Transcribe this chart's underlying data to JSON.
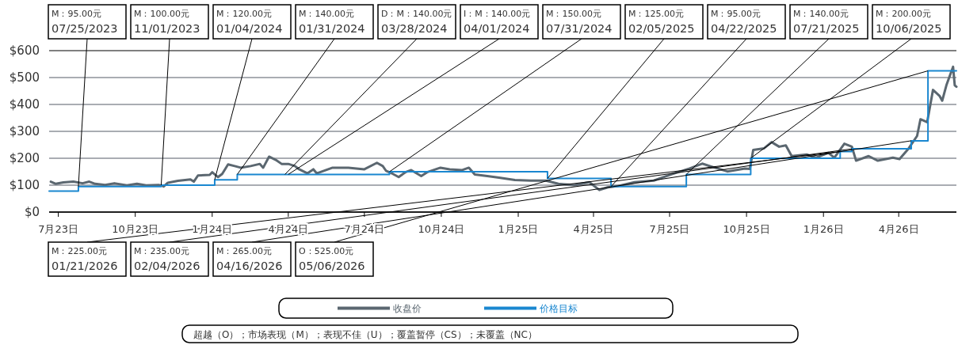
{
  "chart_data": {
    "type": "line",
    "xlim": [
      "2023-06-20",
      "2026-06-09"
    ],
    "xticks": [
      {
        "value": "2023-07-01",
        "label": "7月23日"
      },
      {
        "value": "2023-10-01",
        "label": "10月23日"
      },
      {
        "value": "2024-01-01",
        "label": "1月24日"
      },
      {
        "value": "2024-04-01",
        "label": "4月24日"
      },
      {
        "value": "2024-07-01",
        "label": "7月24日"
      },
      {
        "value": "2024-10-01",
        "label": "10月24日"
      },
      {
        "value": "2025-01-01",
        "label": "1月25日"
      },
      {
        "value": "2025-04-01",
        "label": "4月25日"
      },
      {
        "value": "2025-07-01",
        "label": "7月25日"
      },
      {
        "value": "2025-10-01",
        "label": "10月25日"
      },
      {
        "value": "2026-01-01",
        "label": "1月26日"
      },
      {
        "value": "2026-04-01",
        "label": "4月26日"
      }
    ],
    "ylim": [
      0,
      600
    ],
    "yticks": [
      {
        "value": 0,
        "label": "$0"
      },
      {
        "value": 100,
        "label": "$100"
      },
      {
        "value": 200,
        "label": "$200"
      },
      {
        "value": 300,
        "label": "$300"
      },
      {
        "value": 400,
        "label": "$400"
      },
      {
        "value": 500,
        "label": "$500"
      },
      {
        "value": 600,
        "label": "$600"
      }
    ],
    "grid": "y",
    "legend": "bottom",
    "series": [
      {
        "name": "收盘价",
        "color": "#5b6770",
        "x": [
          "2023-06-22",
          "2023-06-28",
          "2023-07-07",
          "2023-07-19",
          "2023-07-30",
          "2023-08-07",
          "2023-08-14",
          "2023-08-26",
          "2023-09-06",
          "2023-09-21",
          "2023-10-03",
          "2023-10-14",
          "2023-10-29",
          "2023-11-02",
          "2023-11-04",
          "2023-11-09",
          "2023-11-21",
          "2023-12-06",
          "2023-12-10",
          "2023-12-15",
          "2023-12-29",
          "2024-01-01",
          "2024-01-08",
          "2024-01-13",
          "2024-01-20",
          "2024-01-28",
          "2024-02-04",
          "2024-02-16",
          "2024-02-27",
          "2024-03-02",
          "2024-03-09",
          "2024-03-17",
          "2024-03-24",
          "2024-04-01",
          "2024-04-09",
          "2024-04-14",
          "2024-04-24",
          "2024-05-01",
          "2024-05-05",
          "2024-05-24",
          "2024-06-12",
          "2024-07-01",
          "2024-07-16",
          "2024-07-23",
          "2024-07-27",
          "2024-08-04",
          "2024-08-11",
          "2024-08-19",
          "2024-08-26",
          "2024-09-07",
          "2024-09-14",
          "2024-09-30",
          "2024-10-11",
          "2024-10-26",
          "2024-11-03",
          "2024-11-10",
          "2024-11-25",
          "2024-12-09",
          "2024-12-28",
          "2025-01-16",
          "2025-02-03",
          "2025-02-18",
          "2025-03-09",
          "2025-03-27",
          "2025-04-08",
          "2025-04-18",
          "2025-04-29",
          "2025-05-20",
          "2025-06-12",
          "2025-07-03",
          "2025-07-25",
          "2025-08-09",
          "2025-08-21",
          "2025-09-08",
          "2025-09-29",
          "2025-10-05",
          "2025-10-09",
          "2025-10-22",
          "2025-10-31",
          "2025-11-09",
          "2025-11-17",
          "2025-11-24",
          "2025-12-12",
          "2025-12-23",
          "2026-01-07",
          "2026-01-14",
          "2026-01-26",
          "2026-02-04",
          "2026-02-09",
          "2026-02-24",
          "2026-03-07",
          "2026-03-25",
          "2026-04-02",
          "2026-04-13",
          "2026-04-23",
          "2026-04-27",
          "2026-05-05",
          "2026-05-07",
          "2026-05-12",
          "2026-05-20",
          "2026-05-23",
          "2026-05-28",
          "2026-06-03",
          "2026-06-05",
          "2026-06-07",
          "2026-06-09"
        ],
        "values": [
          113,
          105,
          110,
          113,
          107,
          113,
          105,
          101,
          107,
          99,
          105,
          99,
          101,
          98,
          95,
          109,
          116,
          121,
          113,
          136,
          138,
          148,
          130,
          142,
          177,
          171,
          165,
          171,
          179,
          165,
          206,
          194,
          179,
          179,
          171,
          159,
          144,
          159,
          144,
          165,
          165,
          159,
          183,
          171,
          153,
          142,
          130,
          148,
          156,
          134,
          148,
          165,
          159,
          156,
          165,
          140,
          134,
          128,
          119,
          117,
          117,
          105,
          100,
          111,
          82,
          92,
          96,
          111,
          117,
          140,
          162,
          180,
          168,
          151,
          162,
          160,
          231,
          237,
          260,
          243,
          248,
          208,
          214,
          202,
          220,
          202,
          254,
          243,
          191,
          208,
          191,
          202,
          197,
          237,
          283,
          345,
          334,
          368,
          454,
          431,
          414,
          471,
          523,
          540,
          471,
          466
        ]
      },
      {
        "name": "价格目标",
        "type": "step",
        "color": "#1a87d0",
        "x": [
          "2023-06-20",
          "2023-07-25",
          "2023-11-01",
          "2024-01-04",
          "2024-01-31",
          "2024-03-28",
          "2024-04-01",
          "2024-07-31",
          "2025-02-05",
          "2025-04-22",
          "2025-07-21",
          "2025-10-06",
          "2026-01-21",
          "2026-02-04",
          "2026-04-16",
          "2026-05-06",
          "2026-06-09"
        ],
        "values": [
          78,
          95,
          100,
          120,
          140,
          140,
          140,
          150,
          125,
          95,
          140,
          200,
          225,
          235,
          265,
          525,
          525
        ]
      }
    ],
    "annotations": [
      {
        "text": "M：95.00元\n07/25/2023",
        "x": "2023-07-25",
        "y": 95
      },
      {
        "text": "M：100.00元\n11/01/2023",
        "x": "2023-11-01",
        "y": 100
      },
      {
        "text": "M：120.00元\n01/04/2024",
        "x": "2024-01-04",
        "y": 120
      },
      {
        "text": "M：140.00元\n01/31/2024",
        "x": "2024-01-31",
        "y": 140
      },
      {
        "text": "D：M：140.00元\n03/28/2024",
        "x": "2024-03-28",
        "y": 140
      },
      {
        "text": "I：M：140.00元\n04/01/2024",
        "x": "2024-04-01",
        "y": 140
      },
      {
        "text": "M：150.00元\n07/31/2024",
        "x": "2024-07-31",
        "y": 150
      },
      {
        "text": "M：125.00元\n02/05/2025",
        "x": "2025-02-05",
        "y": 125
      },
      {
        "text": "M：95.00元\n04/22/2025",
        "x": "2025-04-22",
        "y": 95
      },
      {
        "text": "M：140.00元\n07/21/2025",
        "x": "2025-07-21",
        "y": 140
      },
      {
        "text": "M：200.00元\n10/06/2025",
        "x": "2025-10-06",
        "y": 200
      },
      {
        "text": "M：225.00元\n01/21/2026",
        "x": "2026-01-21",
        "y": 225
      },
      {
        "text": "M：235.00元\n02/04/2026",
        "x": "2026-02-04",
        "y": 235
      },
      {
        "text": "M：265.00元\n04/16/2026",
        "x": "2026-04-16",
        "y": 265
      },
      {
        "text": "O：525.00元\n05/06/2026",
        "x": "2026-05-06",
        "y": 525
      },
      "超越（O）；市场表现（M）；表现不佳（U）；覆盖暂停（CS）；未覆盖（NC）"
    ]
  }
}
